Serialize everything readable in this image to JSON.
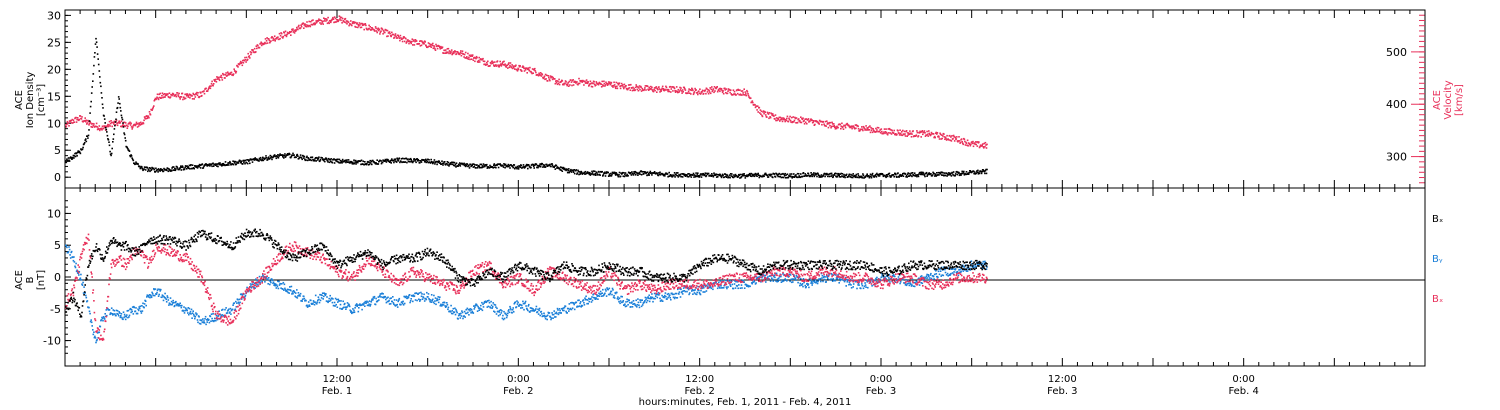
{
  "colors": {
    "density": "#000000",
    "velocity": "#e8305a",
    "bx": "#000000",
    "by": "#1a7fd8",
    "bz": "#e8305a"
  },
  "chart_data": [
    {
      "type": "scatter",
      "panel": "plasma",
      "ylabel_left": [
        "ACE",
        "Ion Density",
        "[cm⁻³]"
      ],
      "ylabel_right": [
        "ACE",
        "Velocity",
        "[km/s]"
      ],
      "ylim_left": [
        -2,
        31
      ],
      "ylim_right": [
        240,
        580
      ],
      "left_ticks": [
        "0",
        "5",
        "10",
        "15",
        "20",
        "25",
        "30"
      ],
      "right_ticks": [
        "300",
        "400",
        "500"
      ],
      "series": [
        {
          "key": "density",
          "axis": "left",
          "x": [
            0,
            1,
            2,
            3,
            4,
            5,
            6,
            7,
            8,
            9,
            10,
            11,
            12,
            14,
            16,
            18,
            20,
            22,
            24,
            26,
            28,
            30,
            32,
            34,
            36,
            38,
            40,
            42,
            44,
            46,
            48,
            50,
            52,
            54,
            56,
            58,
            60,
            62,
            64,
            66,
            68,
            70,
            72,
            74,
            76,
            78,
            80,
            82,
            84,
            86,
            88,
            90,
            92,
            94,
            96,
            98,
            100,
            102,
            104,
            106,
            108,
            110,
            112,
            114,
            116,
            118,
            120,
            122
          ],
          "values": [
            3,
            4,
            5,
            8,
            26,
            12,
            4,
            15,
            6,
            3,
            1.8,
            1.6,
            1.5,
            1.6,
            2.0,
            2.2,
            2.5,
            2.8,
            3.0,
            3.6,
            4.0,
            4.2,
            3.6,
            3.4,
            3.1,
            3.0,
            2.8,
            3.0,
            3.3,
            3.2,
            3.1,
            2.7,
            2.4,
            2.2,
            2.2,
            2.3,
            2.0,
            2.2,
            2.4,
            1.5,
            1.0,
            0.9,
            0.7,
            0.6,
            0.9,
            0.8,
            0.6,
            0.6,
            0.5,
            0.5,
            0.4,
            0.4,
            0.5,
            0.5,
            0.4,
            0.6,
            0.5,
            0.5,
            0.4,
            0.4,
            0.5,
            0.5,
            0.6,
            0.7,
            0.7,
            0.8,
            1.0,
            1.2
          ]
        },
        {
          "key": "velocity",
          "axis": "right",
          "x": [
            0,
            1,
            2,
            3,
            4,
            5,
            6,
            7,
            8,
            9,
            10,
            11,
            12,
            14,
            16,
            18,
            20,
            22,
            24,
            26,
            28,
            30,
            32,
            34,
            36,
            38,
            40,
            42,
            44,
            46,
            48,
            50,
            52,
            54,
            56,
            58,
            60,
            62,
            64,
            66,
            68,
            70,
            72,
            74,
            76,
            78,
            80,
            82,
            84,
            86,
            88,
            90,
            92,
            94,
            96,
            98,
            100,
            102,
            104,
            106,
            108,
            110,
            112,
            114,
            116,
            118,
            120,
            122
          ],
          "values": [
            360,
            370,
            375,
            365,
            360,
            355,
            365,
            365,
            362,
            360,
            365,
            380,
            415,
            420,
            415,
            420,
            450,
            460,
            490,
            520,
            530,
            540,
            555,
            560,
            565,
            555,
            548,
            540,
            528,
            520,
            515,
            505,
            500,
            490,
            480,
            478,
            470,
            465,
            450,
            440,
            445,
            440,
            440,
            435,
            432,
            430,
            430,
            428,
            425,
            430,
            425,
            425,
            385,
            375,
            372,
            370,
            365,
            360,
            358,
            355,
            350,
            348,
            345,
            345,
            340,
            335,
            325,
            322
          ]
        }
      ]
    },
    {
      "type": "scatter",
      "panel": "magnetic",
      "ylabel_left": [
        "ACE",
        "B",
        "[nT]"
      ],
      "ylim": [
        -14,
        14
      ],
      "left_ticks": [
        "-10",
        "-5",
        "0",
        "5",
        "10"
      ],
      "zero_line": true,
      "legend": [
        "Bₓ",
        "Bᵧ",
        "Bₓ"
      ],
      "series": [
        {
          "key": "bx",
          "x": [
            0,
            1,
            2,
            3,
            4,
            5,
            6,
            7,
            8,
            9,
            10,
            11,
            12,
            14,
            16,
            18,
            20,
            22,
            24,
            26,
            28,
            30,
            32,
            34,
            36,
            38,
            40,
            42,
            44,
            46,
            48,
            50,
            52,
            54,
            56,
            58,
            60,
            62,
            64,
            66,
            68,
            70,
            72,
            74,
            76,
            78,
            80,
            82,
            84,
            86,
            88,
            90,
            92,
            94,
            96,
            98,
            100,
            102,
            104,
            106,
            108,
            110,
            112,
            114,
            116,
            118,
            120,
            122
          ],
          "values": [
            -5,
            -3,
            -6,
            2,
            5,
            3,
            6,
            5,
            5,
            4,
            4.5,
            6,
            6,
            6,
            5,
            7,
            6,
            5,
            7,
            7,
            5,
            3,
            4,
            5,
            2,
            3,
            4,
            2,
            3,
            3,
            4,
            3,
            0,
            -1,
            1,
            0,
            2,
            1,
            0,
            2,
            1,
            1,
            2,
            1,
            1,
            0,
            0,
            0,
            2,
            3,
            3,
            2,
            1,
            2,
            2,
            2,
            2,
            2,
            2,
            2,
            1,
            1,
            2,
            2,
            2,
            2,
            2,
            2
          ]
        },
        {
          "key": "by",
          "x": [
            0,
            1,
            2,
            3,
            4,
            5,
            6,
            7,
            8,
            9,
            10,
            11,
            12,
            14,
            16,
            18,
            20,
            22,
            24,
            26,
            28,
            30,
            32,
            34,
            36,
            38,
            40,
            42,
            44,
            46,
            48,
            50,
            52,
            54,
            56,
            58,
            60,
            62,
            64,
            66,
            68,
            70,
            72,
            74,
            76,
            78,
            80,
            82,
            84,
            86,
            88,
            90,
            92,
            94,
            96,
            98,
            100,
            102,
            104,
            106,
            108,
            110,
            112,
            114,
            116,
            118,
            120,
            122
          ],
          "values": [
            5,
            3,
            0,
            -5,
            -10,
            -6,
            -5,
            -6,
            -6,
            -5,
            -5,
            -3,
            -2,
            -4,
            -5,
            -7,
            -6,
            -5,
            -2,
            0,
            -1,
            -2,
            -4,
            -3,
            -4,
            -5,
            -4,
            -3,
            -4,
            -3,
            -3,
            -4,
            -6,
            -5,
            -4,
            -6,
            -4,
            -5,
            -6,
            -5,
            -4,
            -3,
            -2,
            -4,
            -4,
            -3,
            -3,
            -2,
            -2,
            -1,
            -1,
            -1,
            0,
            0,
            0,
            -1,
            0,
            0,
            -1,
            -1,
            0,
            0,
            -1,
            0,
            1,
            1,
            2,
            2
          ]
        },
        {
          "key": "bz",
          "x": [
            0,
            1,
            2,
            3,
            4,
            5,
            6,
            7,
            8,
            9,
            10,
            11,
            12,
            14,
            16,
            18,
            20,
            22,
            24,
            26,
            28,
            30,
            32,
            34,
            36,
            38,
            40,
            42,
            44,
            46,
            48,
            50,
            52,
            54,
            56,
            58,
            60,
            62,
            64,
            66,
            68,
            70,
            72,
            74,
            76,
            78,
            80,
            82,
            84,
            86,
            88,
            90,
            92,
            94,
            96,
            98,
            100,
            102,
            104,
            106,
            108,
            110,
            112,
            114,
            116,
            118,
            120,
            122
          ],
          "values": [
            -4,
            -2,
            3,
            7,
            -8,
            -10,
            2,
            3,
            2,
            4,
            4,
            2,
            5,
            4,
            3,
            0,
            -6,
            -7,
            -2,
            0,
            3,
            5,
            4,
            3,
            1,
            0,
            3,
            1,
            -1,
            1,
            0,
            -1,
            -2,
            1,
            2,
            -1,
            0,
            -2,
            1,
            0,
            -1,
            -2,
            1,
            -2,
            -1,
            -2,
            -1,
            -1,
            -1,
            -1,
            0,
            0,
            0,
            1,
            1,
            0,
            1,
            1,
            0,
            0,
            -1,
            0,
            0,
            -1,
            -1,
            0,
            0,
            0
          ]
        }
      ]
    }
  ],
  "time_axis": {
    "labels": [
      {
        "x": 36,
        "time": "12:00",
        "date": "Feb. 1"
      },
      {
        "x": 60,
        "time": "0:00",
        "date": "Feb. 2"
      },
      {
        "x": 84,
        "time": "12:00",
        "date": "Feb. 2"
      },
      {
        "x": 108,
        "time": "0:00",
        "date": "Feb. 3"
      },
      {
        "x": 132,
        "time": "12:00",
        "date": "Feb. 3"
      },
      {
        "x": 156,
        "time": "0:00",
        "date": "Feb. 4"
      }
    ],
    "xlabel": "hours:minutes, Feb.  1, 2011 - Feb.  4, 2011",
    "xlim": [
      0,
      180
    ]
  }
}
